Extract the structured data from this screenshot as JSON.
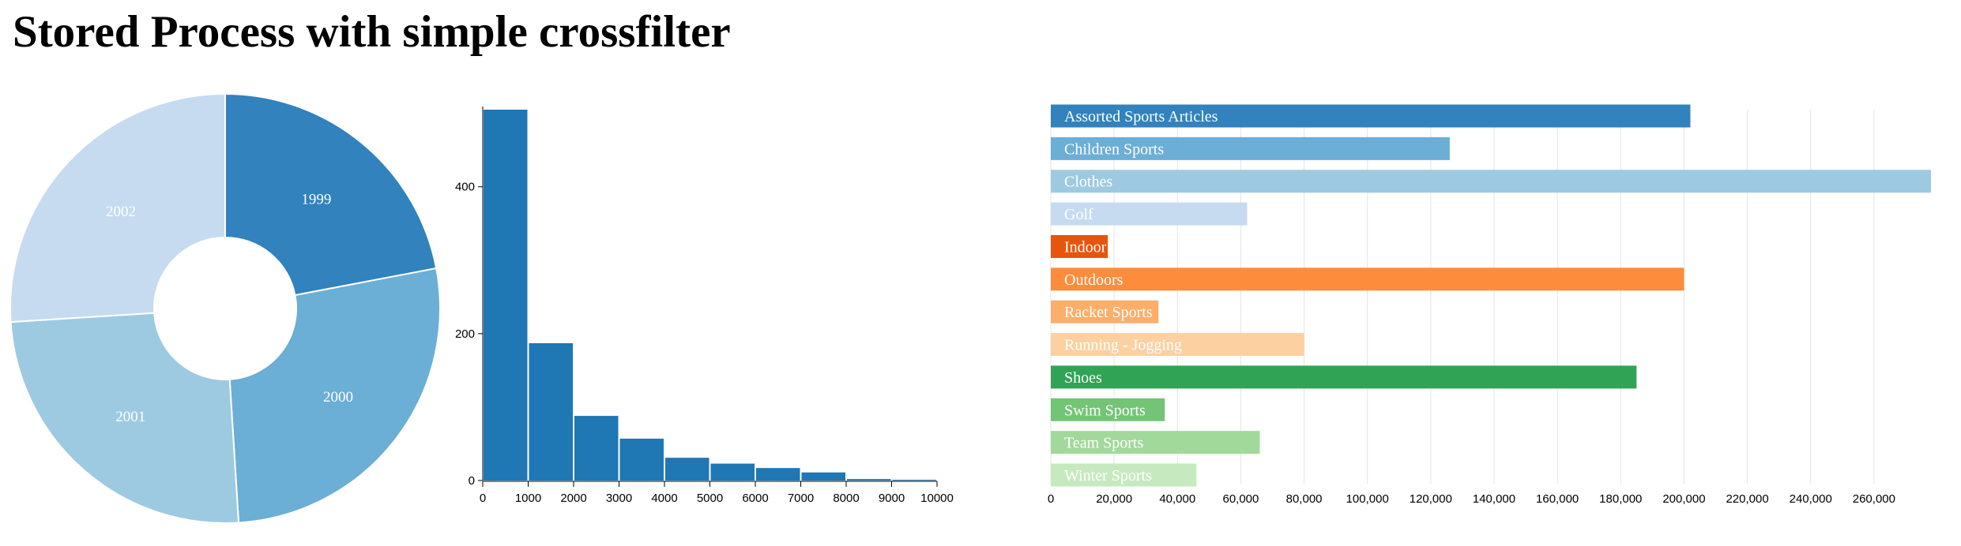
{
  "page": {
    "title": "Stored Process with simple crossfilter"
  },
  "chart_data": [
    {
      "type": "pie",
      "donut": true,
      "labels": [
        "1999",
        "2000",
        "2001",
        "2002"
      ],
      "values": [
        22,
        27,
        25,
        26
      ],
      "colors": [
        "#3182bd",
        "#6baed6",
        "#9ecae1",
        "#c6dbef"
      ]
    },
    {
      "type": "bar",
      "categories": [
        "0",
        "1000",
        "2000",
        "3000",
        "4000",
        "5000",
        "6000",
        "7000",
        "8000",
        "9000"
      ],
      "values": [
        505,
        187,
        88,
        57,
        31,
        23,
        17,
        11,
        2,
        1
      ],
      "color": "#1f77b4",
      "ylim": [
        0,
        505
      ],
      "yticks": [
        "0",
        "200",
        "400"
      ],
      "xticks": [
        "0",
        "1000",
        "2000",
        "3000",
        "4000",
        "5000",
        "6000",
        "7000",
        "8000",
        "9000",
        "10000"
      ]
    },
    {
      "type": "bar",
      "orientation": "horizontal",
      "categories": [
        "Assorted Sports Articles",
        "Children Sports",
        "Clothes",
        "Golf",
        "Indoor",
        "Outdoors",
        "Racket Sports",
        "Running - Jogging",
        "Shoes",
        "Swim Sports",
        "Team Sports",
        "Winter Sports"
      ],
      "values": [
        202000,
        126000,
        278000,
        62000,
        18000,
        200000,
        34000,
        80000,
        185000,
        36000,
        66000,
        46000
      ],
      "colors": [
        "#3182bd",
        "#6baed6",
        "#9ecae1",
        "#c6dbef",
        "#e6550d",
        "#fd8d3c",
        "#fdae6b",
        "#fdd0a2",
        "#31a354",
        "#74c476",
        "#a1d99b",
        "#c7e9c0"
      ],
      "xlim": [
        0,
        278000
      ],
      "grid": true,
      "xticks": [
        "0",
        "20,000",
        "40,000",
        "60,000",
        "80,000",
        "100,000",
        "120,000",
        "140,000",
        "160,000",
        "180,000",
        "200,000",
        "220,000",
        "240,000",
        "260,000"
      ]
    }
  ]
}
